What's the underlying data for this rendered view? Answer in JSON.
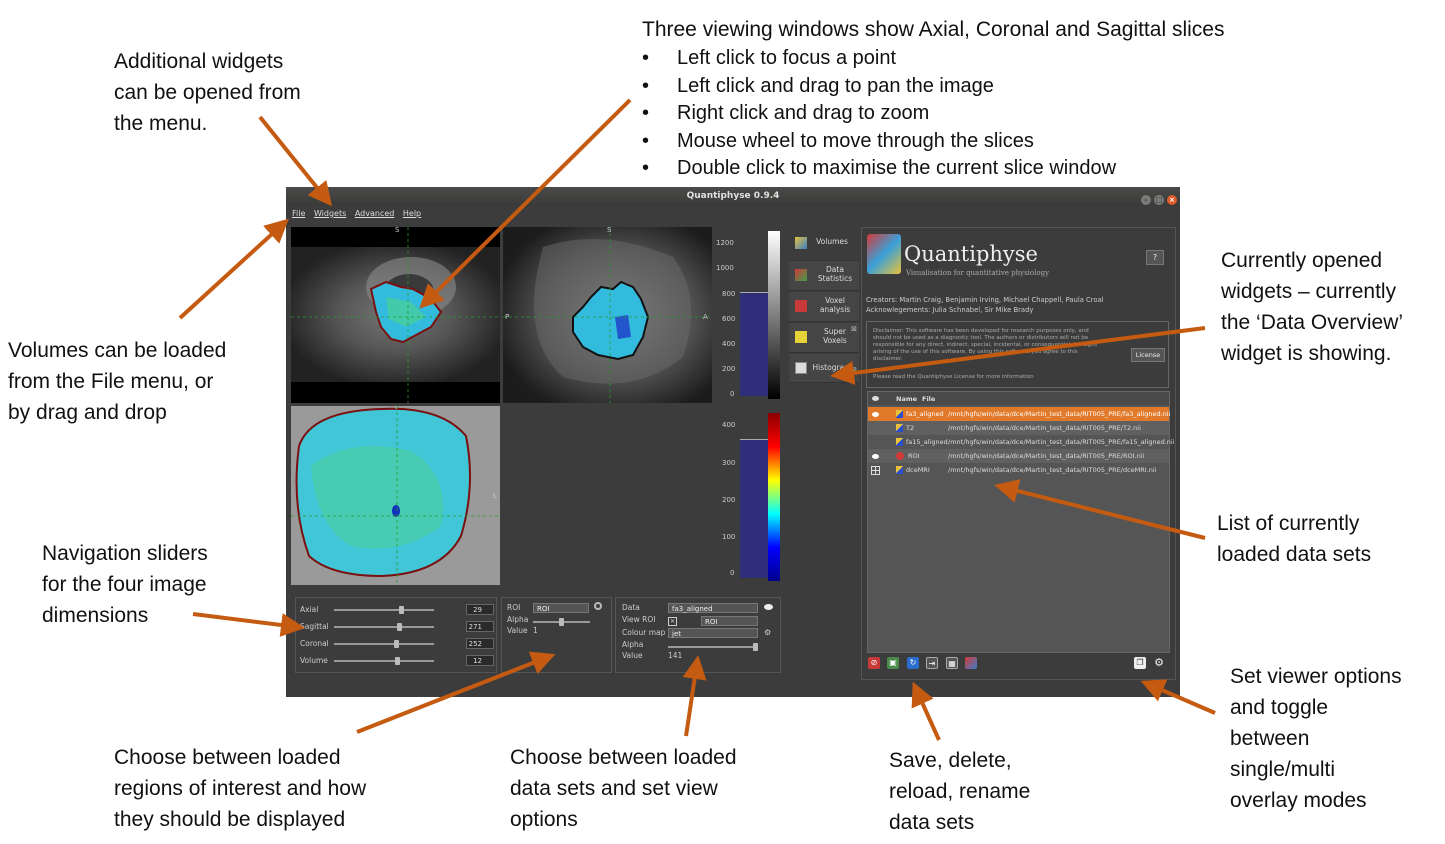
{
  "annotations": {
    "widgets_menu": [
      "Additional widgets",
      "can be opened from",
      "the menu."
    ],
    "viewing_title": "Three viewing windows show Axial, Coronal and Sagittal slices",
    "viewing_bullets": [
      "Left click to focus a point",
      "Left click and drag to pan the image",
      "Right click and drag to zoom",
      "Mouse wheel to move through the slices",
      "Double click to maximise the current slice window"
    ],
    "volumes_load": [
      "Volumes can be loaded",
      "from the File menu, or",
      "by drag and drop"
    ],
    "current_widgets": [
      "Currently opened",
      "widgets – currently",
      "the ‘Data Overview’",
      "widget is showing."
    ],
    "data_list": [
      "List of currently",
      "loaded data sets"
    ],
    "nav_sliders": [
      "Navigation sliders",
      "for the four image",
      "dimensions"
    ],
    "roi_choose": [
      "Choose between loaded",
      "regions of interest and how",
      "they should be displayed"
    ],
    "data_choose": [
      "Choose between loaded",
      "data sets and set view",
      "options"
    ],
    "save_delete": [
      "Save, delete,",
      "reload, rename",
      "data sets"
    ],
    "viewer_options": [
      "Set viewer options",
      "and toggle",
      "between",
      "single/multi",
      "overlay modes"
    ]
  },
  "app": {
    "title": "Quantiphyse 0.9.4",
    "menu": [
      "File",
      "Widgets",
      "Advanced",
      "Help"
    ],
    "view_labels": {
      "top_s": "S",
      "mid_s": "S",
      "left_p": "P",
      "right_a": "A",
      "bot_l": "L",
      "bot_i": "I"
    },
    "colorbar1_ticks": [
      "1200",
      "1000",
      "800",
      "600",
      "400",
      "200",
      "0"
    ],
    "colorbar2_ticks": [
      "400",
      "300",
      "200",
      "100",
      "0"
    ],
    "tabs": [
      {
        "label": "Volumes",
        "icon": "volumes-icon"
      },
      {
        "label": "Data Statistics",
        "icon": "statistics-icon"
      },
      {
        "label": "Voxel analysis",
        "icon": "voxel-icon"
      },
      {
        "label": "Super Voxels",
        "icon": "supervoxel-icon"
      },
      {
        "label": "Histogram",
        "icon": "histogram-icon"
      }
    ],
    "logo_title": "Quantiphyse",
    "logo_subtitle": "Visualisation for quantitative physiology",
    "help_btn": "?",
    "creators": "Creators: Martin Craig, Benjamin Irving, Michael Chappell, Paula Croal",
    "acknowledgements": "Acknowlegements: Julia Schnabel, Sir Mike Brady",
    "disclaimer": "Disclaimer: This software has been developed for research purposes only, and should not be used as a diagnostic tool. The authors or distributors will not be responsible for any direct, indirect, special, incidental, or consequential damages arising of the use of this software. By using this software you agree to this disclaimer.",
    "license_note": "Please read the Quantiphyse License for more information",
    "license_btn": "License",
    "table_headers": [
      "Name",
      "File"
    ],
    "datasets": [
      {
        "name": "fa3_aligned",
        "file": "/mnt/hgfs/win/data/dce/Martin_test_data/RIT005_PRE/fa3_aligned.nii",
        "vis": "eye"
      },
      {
        "name": "T2",
        "file": "/mnt/hgfs/win/data/dce/Martin_test_data/RIT005_PRE/T2.nii",
        "vis": ""
      },
      {
        "name": "fa15_aligned",
        "file": "/mnt/hgfs/win/data/dce/Martin_test_data/RIT005_PRE/fa15_aligned.nii",
        "vis": ""
      },
      {
        "name": "ROI",
        "file": "/mnt/hgfs/win/data/dce/Martin_test_data/RIT005_PRE/ROI.nii",
        "vis": "eye"
      },
      {
        "name": "dceMRI",
        "file": "/mnt/hgfs/win/data/dce/Martin_test_data/RIT005_PRE/dceMRI.nii",
        "vis": "grid"
      }
    ],
    "nav": {
      "axial_label": "Axial",
      "axial_value": "29",
      "sagittal_label": "Sagittal",
      "sagittal_value": "271",
      "coronal_label": "Coronal",
      "coronal_value": "252",
      "volume_label": "Volume",
      "volume_value": "12"
    },
    "roi_panel": {
      "roi_label": "ROI",
      "roi_value": "ROI",
      "alpha_label": "Alpha",
      "value_label": "Value",
      "value": "1"
    },
    "data_panel": {
      "data_label": "Data",
      "data_value": "fa3_aligned",
      "view_roi_label": "View ROI",
      "view_roi_value": "ROI",
      "colour_map_label": "Colour map",
      "colour_map_value": "jet",
      "alpha_label": "Alpha",
      "value_label": "Value",
      "value": "141"
    }
  },
  "colors": {
    "arrow": "#c55a11",
    "selected_row": "#e07a2a"
  }
}
